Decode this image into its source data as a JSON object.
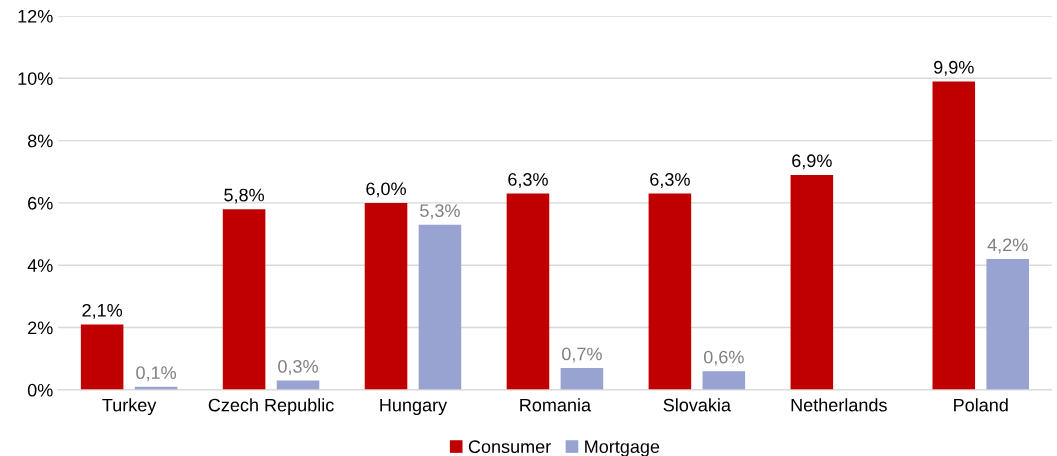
{
  "chart_data": {
    "type": "bar",
    "categories": [
      "Turkey",
      "Czech Republic",
      "Hungary",
      "Romania",
      "Slovakia",
      "Netherlands",
      "Poland"
    ],
    "series": [
      {
        "name": "Consumer",
        "color": "#c00000",
        "values": [
          2.1,
          5.8,
          6.0,
          6.3,
          6.3,
          6.9,
          9.9
        ],
        "value_labels": [
          "2,1%",
          "5,8%",
          "6,0%",
          "6,3%",
          "6,3%",
          "6,9%",
          "9,9%"
        ]
      },
      {
        "name": "Mortgage",
        "color": "#99a3d1",
        "values": [
          0.1,
          0.3,
          5.3,
          0.7,
          0.6,
          null,
          4.2
        ],
        "value_labels": [
          "0,1%",
          "0,3%",
          "5,3%",
          "0,7%",
          "0,6%",
          null,
          "4,2%"
        ]
      }
    ],
    "ylim": [
      0,
      12
    ],
    "yticks": [
      {
        "value": 0,
        "label": "0%"
      },
      {
        "value": 2,
        "label": "2%"
      },
      {
        "value": 4,
        "label": "4%"
      },
      {
        "value": 6,
        "label": "6%"
      },
      {
        "value": 8,
        "label": "8%"
      },
      {
        "value": 10,
        "label": "10%"
      },
      {
        "value": 12,
        "label": "12%"
      }
    ],
    "grid": "y",
    "legend": "bottom"
  }
}
